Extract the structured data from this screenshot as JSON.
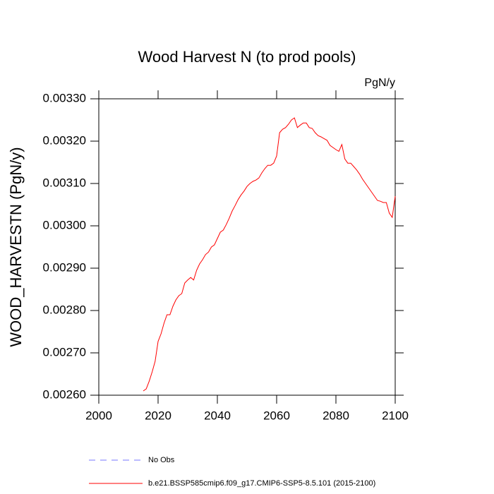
{
  "chart_data": {
    "type": "line",
    "title": "Wood Harvest N (to prod pools)",
    "units": "PgN/y",
    "ylabel": "WOOD_HARVESTN  (PgN/y)",
    "x": [
      2015,
      2016,
      2017,
      2018,
      2019,
      2020,
      2021,
      2022,
      2023,
      2024,
      2025,
      2026,
      2027,
      2028,
      2029,
      2030,
      2031,
      2032,
      2033,
      2034,
      2035,
      2036,
      2037,
      2038,
      2039,
      2040,
      2041,
      2042,
      2043,
      2044,
      2045,
      2046,
      2047,
      2048,
      2049,
      2050,
      2051,
      2052,
      2053,
      2054,
      2055,
      2056,
      2057,
      2058,
      2059,
      2060,
      2061,
      2062,
      2063,
      2064,
      2065,
      2066,
      2067,
      2068,
      2069,
      2070,
      2071,
      2072,
      2073,
      2074,
      2075,
      2076,
      2077,
      2078,
      2079,
      2080,
      2081,
      2082,
      2083,
      2084,
      2085,
      2086,
      2087,
      2088,
      2089,
      2090,
      2091,
      2092,
      2093,
      2094,
      2095,
      2096,
      2097,
      2098,
      2099,
      2100
    ],
    "series": [
      {
        "name": "b.e21.BSSP585cmip6.f09_g17.CMIP6-SSP5-8.5.101 (2015-2100)",
        "color": "#ff0000",
        "values": [
          0.00261,
          0.002615,
          0.002633,
          0.002655,
          0.00268,
          0.002727,
          0.002745,
          0.00277,
          0.00279,
          0.00279,
          0.00281,
          0.002825,
          0.002835,
          0.00284,
          0.002865,
          0.002872,
          0.002878,
          0.002872,
          0.002895,
          0.00291,
          0.00292,
          0.002932,
          0.002938,
          0.00295,
          0.002955,
          0.00297,
          0.002985,
          0.00299,
          0.003003,
          0.003018,
          0.003035,
          0.003048,
          0.003062,
          0.003073,
          0.003082,
          0.003093,
          0.0031,
          0.003105,
          0.003108,
          0.003113,
          0.003125,
          0.003135,
          0.003143,
          0.003143,
          0.003148,
          0.003165,
          0.00322,
          0.003228,
          0.003232,
          0.00324,
          0.00325,
          0.003255,
          0.003232,
          0.003238,
          0.003243,
          0.003243,
          0.003232,
          0.00323,
          0.00322,
          0.003213,
          0.00321,
          0.003206,
          0.003202,
          0.00319,
          0.003185,
          0.00318,
          0.003176,
          0.003192,
          0.003158,
          0.003148,
          0.003148,
          0.00314,
          0.003132,
          0.003122,
          0.00311,
          0.0031,
          0.00309,
          0.00308,
          0.00307,
          0.00306,
          0.003058,
          0.003055,
          0.003055,
          0.00303,
          0.00302,
          0.00307
        ]
      }
    ],
    "legend_extra": [
      {
        "name": "No Obs",
        "color": "#7777ff",
        "dashed": true
      }
    ],
    "xlim": [
      2000,
      2100
    ],
    "xticks": [
      2000,
      2020,
      2040,
      2060,
      2080,
      2100
    ],
    "ylim": [
      0.0026,
      0.0033
    ],
    "yticks": [
      {
        "value": 0.0026,
        "label": "0.00260"
      },
      {
        "value": 0.0027,
        "label": "0.00270"
      },
      {
        "value": 0.0028,
        "label": "0.00280"
      },
      {
        "value": 0.0029,
        "label": "0.00290"
      },
      {
        "value": 0.003,
        "label": "0.00300"
      },
      {
        "value": 0.0031,
        "label": "0.00310"
      },
      {
        "value": 0.0032,
        "label": "0.00320"
      },
      {
        "value": 0.0033,
        "label": "0.00330"
      }
    ]
  }
}
